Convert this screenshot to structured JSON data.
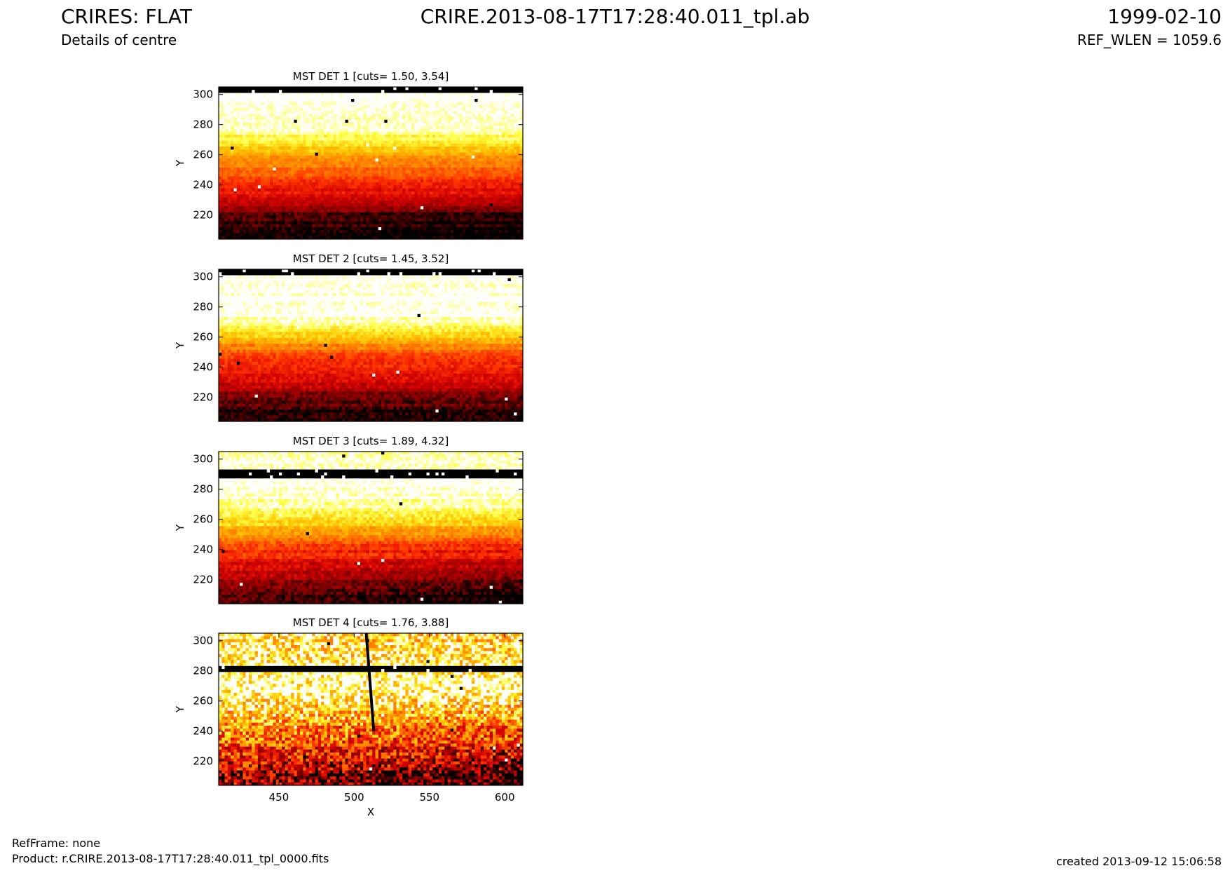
{
  "header": {
    "instrument_title": "CRIRES: FLAT",
    "subtitle": "Details of centre",
    "file_title": "CRIRE.2013-08-17T17:28:40.011_tpl.ab",
    "date": "1999-02-10",
    "ref_wlen": "REF_WLEN = 1059.6"
  },
  "footer": {
    "refframe": "RefFrame: none",
    "product": "Product: r.CRIRE.2013-08-17T17:28:40.011_tpl_0000.fits",
    "created": "created 2013-09-12 15:06:58"
  },
  "colors": {
    "colormap": [
      "#000000",
      "#800000",
      "#d00000",
      "#ff3000",
      "#ff8000",
      "#ffc000",
      "#ffff40",
      "#ffffff"
    ]
  },
  "chart_data": [
    {
      "type": "heatmap",
      "title": "MST DET 1 [cuts= 1.50, 3.54]",
      "ylabel": "Y",
      "xlabel": "",
      "xlim": [
        410,
        612
      ],
      "ylim": [
        204,
        305
      ],
      "yticks": [
        "300",
        "280",
        "260",
        "240",
        "220"
      ],
      "xticks": [],
      "features": {
        "profile": [
          [
            204,
            0.0
          ],
          [
            214,
            0.05
          ],
          [
            222,
            0.12
          ],
          [
            232,
            0.3
          ],
          [
            242,
            0.44
          ],
          [
            252,
            0.53
          ],
          [
            262,
            0.7
          ],
          [
            270,
            0.84
          ],
          [
            278,
            0.95
          ],
          [
            290,
            1.0
          ],
          [
            305,
            1.0
          ]
        ],
        "tilt": 0.05,
        "noise": 0.06,
        "black_rows": [
          [
            302,
            305
          ]
        ],
        "defect_column": null
      }
    },
    {
      "type": "heatmap",
      "title": "MST DET 2 [cuts= 1.45, 3.52]",
      "ylabel": "Y",
      "xlabel": "",
      "xlim": [
        410,
        612
      ],
      "ylim": [
        204,
        305
      ],
      "yticks": [
        "300",
        "280",
        "260",
        "240",
        "220"
      ],
      "xticks": [],
      "features": {
        "profile": [
          [
            204,
            0.0
          ],
          [
            214,
            0.08
          ],
          [
            224,
            0.2
          ],
          [
            234,
            0.33
          ],
          [
            244,
            0.43
          ],
          [
            252,
            0.55
          ],
          [
            260,
            0.74
          ],
          [
            268,
            0.9
          ],
          [
            274,
            1.0
          ],
          [
            305,
            1.0
          ]
        ],
        "tilt": 0.0,
        "noise": 0.07,
        "black_rows": [
          [
            301,
            305
          ]
        ],
        "defect_column": null
      }
    },
    {
      "type": "heatmap",
      "title": "MST DET 3 [cuts= 1.89, 4.32]",
      "ylabel": "Y",
      "xlabel": "",
      "xlim": [
        410,
        612
      ],
      "ylim": [
        204,
        305
      ],
      "yticks": [
        "300",
        "280",
        "260",
        "240",
        "220"
      ],
      "xticks": [],
      "features": {
        "profile": [
          [
            204,
            0.0
          ],
          [
            214,
            0.1
          ],
          [
            224,
            0.22
          ],
          [
            234,
            0.35
          ],
          [
            244,
            0.48
          ],
          [
            254,
            0.68
          ],
          [
            264,
            0.88
          ],
          [
            274,
            0.96
          ],
          [
            286,
            1.0
          ],
          [
            305,
            0.97
          ]
        ],
        "tilt": 0.12,
        "noise": 0.08,
        "black_rows": [
          [
            288,
            293
          ]
        ],
        "defect_column": null
      }
    },
    {
      "type": "heatmap",
      "title": "MST DET 4 [cuts= 1.76, 3.88]",
      "ylabel": "Y",
      "xlabel": "X",
      "xlim": [
        410,
        612
      ],
      "ylim": [
        204,
        305
      ],
      "yticks": [
        "300",
        "280",
        "260",
        "240",
        "220"
      ],
      "xticks": [
        "450",
        "500",
        "550",
        "600"
      ],
      "features": {
        "profile": [
          [
            204,
            0.1
          ],
          [
            214,
            0.2
          ],
          [
            224,
            0.33
          ],
          [
            234,
            0.48
          ],
          [
            244,
            0.62
          ],
          [
            254,
            0.78
          ],
          [
            264,
            0.9
          ],
          [
            276,
            0.96
          ],
          [
            290,
            0.85
          ],
          [
            305,
            0.82
          ]
        ],
        "tilt": 0.22,
        "noise": 0.28,
        "black_rows": [
          [
            279,
            283
          ]
        ],
        "defect_column": [
          [
            508,
            305
          ],
          [
            513,
            240
          ]
        ]
      }
    }
  ]
}
